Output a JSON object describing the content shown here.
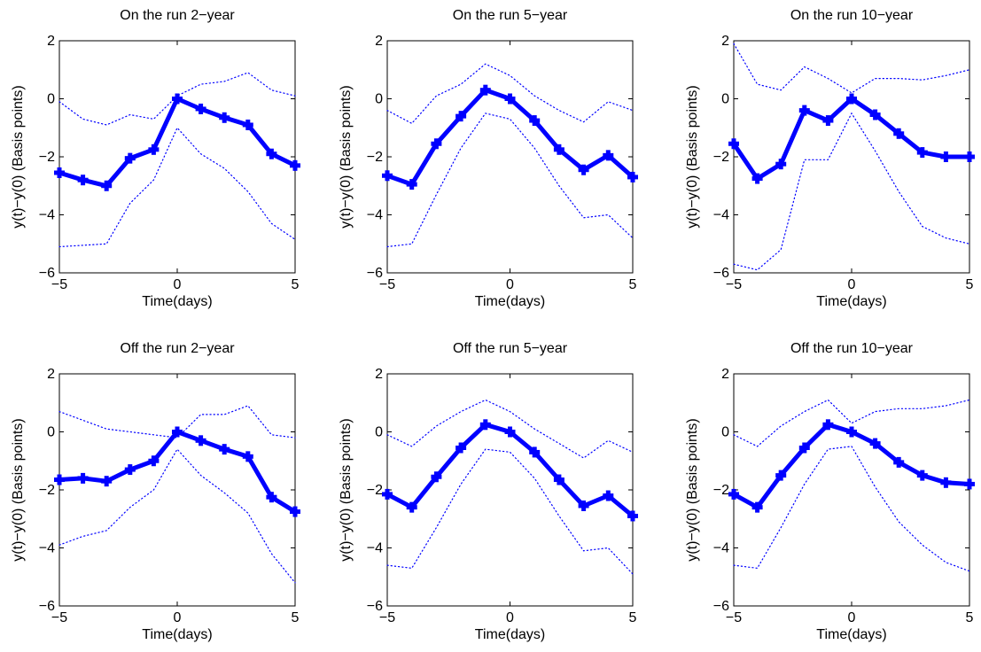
{
  "chart_data": [
    {
      "type": "line",
      "title": "On the run 2−year",
      "xlabel": "Time(days)",
      "ylabel": "y(t)−y(0) (Basis points)",
      "xlim": [
        -5,
        5
      ],
      "ylim": [
        -6,
        2
      ],
      "xticks": [
        "−5",
        "0",
        "5"
      ],
      "yticks": [
        "−6",
        "−4",
        "−2",
        "0",
        "2"
      ],
      "grid": false,
      "x": [
        -5,
        -4,
        -3,
        -2,
        -1,
        0,
        1,
        2,
        3,
        4,
        5
      ],
      "series": [
        {
          "role": "estimate",
          "style": "solid-thick-markers",
          "values": [
            -2.55,
            -2.8,
            -3.0,
            -2.05,
            -1.75,
            0.0,
            -0.35,
            -0.65,
            -0.9,
            -1.9,
            -2.3
          ]
        },
        {
          "role": "upper",
          "style": "dotted",
          "values": [
            -0.1,
            -0.7,
            -0.9,
            -0.55,
            -0.7,
            0.1,
            0.5,
            0.6,
            0.9,
            0.3,
            0.1
          ]
        },
        {
          "role": "lower",
          "style": "dotted",
          "values": [
            -5.1,
            -5.05,
            -5.0,
            -3.6,
            -2.8,
            -1.0,
            -1.9,
            -2.4,
            -3.2,
            -4.3,
            -4.85
          ]
        }
      ]
    },
    {
      "type": "line",
      "title": "On the run 5−year",
      "xlabel": "Time(days)",
      "ylabel": "y(t)−y(0) (Basis points)",
      "xlim": [
        -5,
        5
      ],
      "ylim": [
        -6,
        2
      ],
      "xticks": [
        "−5",
        "0",
        "5"
      ],
      "yticks": [
        "−6",
        "−4",
        "−2",
        "0",
        "2"
      ],
      "grid": false,
      "x": [
        -5,
        -4,
        -3,
        -2,
        -1,
        0,
        1,
        2,
        3,
        4,
        5
      ],
      "series": [
        {
          "role": "estimate",
          "style": "solid-thick-markers",
          "values": [
            -2.65,
            -2.95,
            -1.55,
            -0.6,
            0.3,
            0.0,
            -0.75,
            -1.75,
            -2.45,
            -1.95,
            -2.7
          ]
        },
        {
          "role": "upper",
          "style": "dotted",
          "values": [
            -0.4,
            -0.85,
            0.1,
            0.5,
            1.2,
            0.8,
            0.1,
            -0.4,
            -0.8,
            -0.1,
            -0.4
          ]
        },
        {
          "role": "lower",
          "style": "dotted",
          "values": [
            -5.1,
            -5.0,
            -3.3,
            -1.7,
            -0.5,
            -0.7,
            -1.7,
            -3.0,
            -4.1,
            -4.0,
            -4.8
          ]
        }
      ]
    },
    {
      "type": "line",
      "title": "On the run 10−year",
      "xlabel": "Time(days)",
      "ylabel": "y(t)−y(0) (Basis points)",
      "xlim": [
        -5,
        5
      ],
      "ylim": [
        -6,
        2
      ],
      "xticks": [
        "−5",
        "0",
        "5"
      ],
      "yticks": [
        "−6",
        "−4",
        "−2",
        "0",
        "2"
      ],
      "grid": false,
      "x": [
        -5,
        -4,
        -3,
        -2,
        -1,
        0,
        1,
        2,
        3,
        4,
        5
      ],
      "series": [
        {
          "role": "estimate",
          "style": "solid-thick-markers",
          "values": [
            -1.55,
            -2.75,
            -2.25,
            -0.4,
            -0.75,
            0.0,
            -0.55,
            -1.2,
            -1.85,
            -2.0,
            -2.0
          ]
        },
        {
          "role": "upper",
          "style": "dotted",
          "values": [
            1.9,
            0.5,
            0.3,
            1.1,
            0.7,
            0.2,
            0.7,
            0.7,
            0.65,
            0.8,
            1.0
          ]
        },
        {
          "role": "lower",
          "style": "dotted",
          "values": [
            -5.7,
            -5.9,
            -5.2,
            -2.1,
            -2.1,
            -0.5,
            -1.8,
            -3.2,
            -4.4,
            -4.8,
            -5.0
          ]
        }
      ]
    },
    {
      "type": "line",
      "title": "Off the run 2−year",
      "xlabel": "Time(days)",
      "ylabel": "y(t)−y(0) (Basis points)",
      "xlim": [
        -5,
        5
      ],
      "ylim": [
        -6,
        2
      ],
      "xticks": [
        "−5",
        "0",
        "5"
      ],
      "yticks": [
        "−6",
        "−4",
        "−2",
        "0",
        "2"
      ],
      "grid": false,
      "x": [
        -5,
        -4,
        -3,
        -2,
        -1,
        0,
        1,
        2,
        3,
        4,
        5
      ],
      "series": [
        {
          "role": "estimate",
          "style": "solid-thick-markers",
          "values": [
            -1.65,
            -1.6,
            -1.7,
            -1.3,
            -1.0,
            0.0,
            -0.3,
            -0.6,
            -0.85,
            -2.25,
            -2.75
          ]
        },
        {
          "role": "upper",
          "style": "dotted",
          "values": [
            0.7,
            0.4,
            0.1,
            0.0,
            -0.1,
            -0.2,
            0.6,
            0.6,
            0.9,
            -0.1,
            -0.2
          ]
        },
        {
          "role": "lower",
          "style": "dotted",
          "values": [
            -3.9,
            -3.6,
            -3.4,
            -2.6,
            -2.0,
            -0.6,
            -1.5,
            -2.1,
            -2.8,
            -4.2,
            -5.2
          ]
        }
      ]
    },
    {
      "type": "line",
      "title": "Off the run 5−year",
      "xlabel": "Time(days)",
      "ylabel": "y(t)−y(0) (Basis points)",
      "xlim": [
        -5,
        5
      ],
      "ylim": [
        -6,
        2
      ],
      "xticks": [
        "−5",
        "0",
        "5"
      ],
      "yticks": [
        "−6",
        "−4",
        "−2",
        "0",
        "2"
      ],
      "grid": false,
      "x": [
        -5,
        -4,
        -3,
        -2,
        -1,
        0,
        1,
        2,
        3,
        4,
        5
      ],
      "series": [
        {
          "role": "estimate",
          "style": "solid-thick-markers",
          "values": [
            -2.15,
            -2.6,
            -1.55,
            -0.55,
            0.25,
            0.0,
            -0.7,
            -1.65,
            -2.55,
            -2.2,
            -2.9
          ]
        },
        {
          "role": "upper",
          "style": "dotted",
          "values": [
            -0.1,
            -0.5,
            0.2,
            0.7,
            1.1,
            0.7,
            0.1,
            -0.4,
            -0.9,
            -0.3,
            -0.7
          ]
        },
        {
          "role": "lower",
          "style": "dotted",
          "values": [
            -4.6,
            -4.7,
            -3.3,
            -1.8,
            -0.6,
            -0.7,
            -1.6,
            -2.9,
            -4.1,
            -4.0,
            -4.9
          ]
        }
      ]
    },
    {
      "type": "line",
      "title": "Off the run 10−year",
      "xlabel": "Time(days)",
      "ylabel": "y(t)−y(0) (Basis points)",
      "xlim": [
        -5,
        5
      ],
      "ylim": [
        -6,
        2
      ],
      "xticks": [
        "−5",
        "0",
        "5"
      ],
      "yticks": [
        "−6",
        "−4",
        "−2",
        "0",
        "2"
      ],
      "grid": false,
      "x": [
        -5,
        -4,
        -3,
        -2,
        -1,
        0,
        1,
        2,
        3,
        4,
        5
      ],
      "series": [
        {
          "role": "estimate",
          "style": "solid-thick-markers",
          "values": [
            -2.15,
            -2.6,
            -1.5,
            -0.55,
            0.25,
            0.0,
            -0.4,
            -1.05,
            -1.5,
            -1.75,
            -1.8
          ]
        },
        {
          "role": "upper",
          "style": "dotted",
          "values": [
            -0.1,
            -0.5,
            0.2,
            0.7,
            1.1,
            0.3,
            0.7,
            0.8,
            0.8,
            0.9,
            1.1
          ]
        },
        {
          "role": "lower",
          "style": "dotted",
          "values": [
            -4.6,
            -4.7,
            -3.3,
            -1.8,
            -0.6,
            -0.5,
            -1.9,
            -3.1,
            -3.9,
            -4.5,
            -4.8
          ]
        }
      ]
    }
  ],
  "colors": {
    "series": "#0000ff",
    "axes": "#000000",
    "background": "#ffffff"
  }
}
